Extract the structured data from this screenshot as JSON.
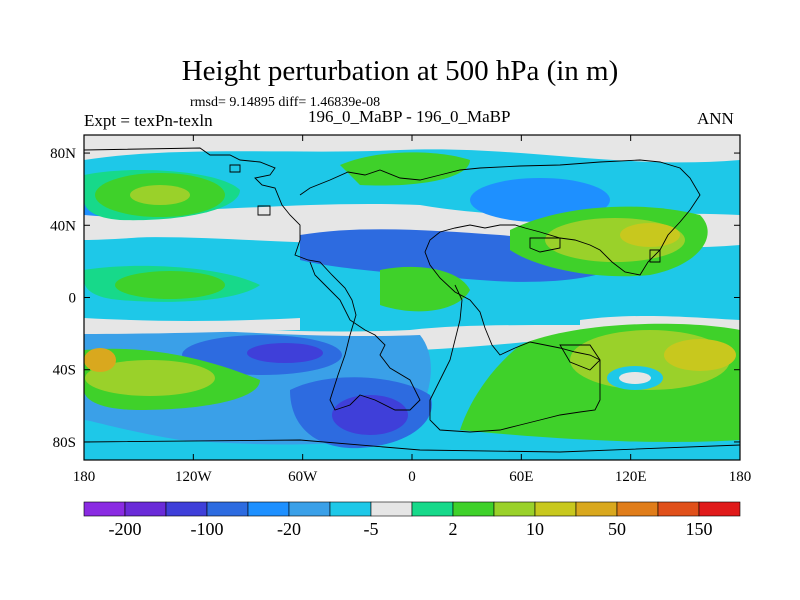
{
  "chart_data": {
    "type": "heatmap",
    "title": "Height perturbation at 500 hPa (in m)",
    "stats_line": "rmsd= 9.14895 diff= 1.46839e-08",
    "left_label": "Expt = texPn-texln",
    "center_label": "196_0_MaBP - 196_0_MaBP",
    "right_label": "ANN",
    "x_ticks": [
      "180",
      "120W",
      "60W",
      "0",
      "60E",
      "120E",
      "180"
    ],
    "y_ticks": [
      "80N",
      "40N",
      "0",
      "40S",
      "80S"
    ],
    "xlim": [
      -180,
      180
    ],
    "ylim": [
      -90,
      90
    ],
    "colorbar_colors": [
      "#8a2be2",
      "#6a2bd8",
      "#3f3fd9",
      "#2d6be0",
      "#1e90ff",
      "#3aa0e8",
      "#1ec8e8",
      "#e6e6e6",
      "#17d98a",
      "#3fd12a",
      "#9ad12a",
      "#c8c81e",
      "#d9a81e",
      "#e07d1a",
      "#e0501a",
      "#e01a1a"
    ],
    "colorbar_labels": [
      "-200",
      "-100",
      "-20",
      "-5",
      "2",
      "10",
      "50",
      "150"
    ],
    "field_colors": {
      "background": "#e6e6e6",
      "cyan": "#1ec8e8",
      "light_blue": "#3aa0e8",
      "blue": "#1e90ff",
      "deep_blue": "#2d6be0",
      "darkest_blue": "#3f3fd9",
      "teal": "#17d98a",
      "green": "#3fd12a",
      "yellow_green": "#9ad12a",
      "olive": "#c8c81e",
      "orange": "#d9a81e"
    }
  }
}
